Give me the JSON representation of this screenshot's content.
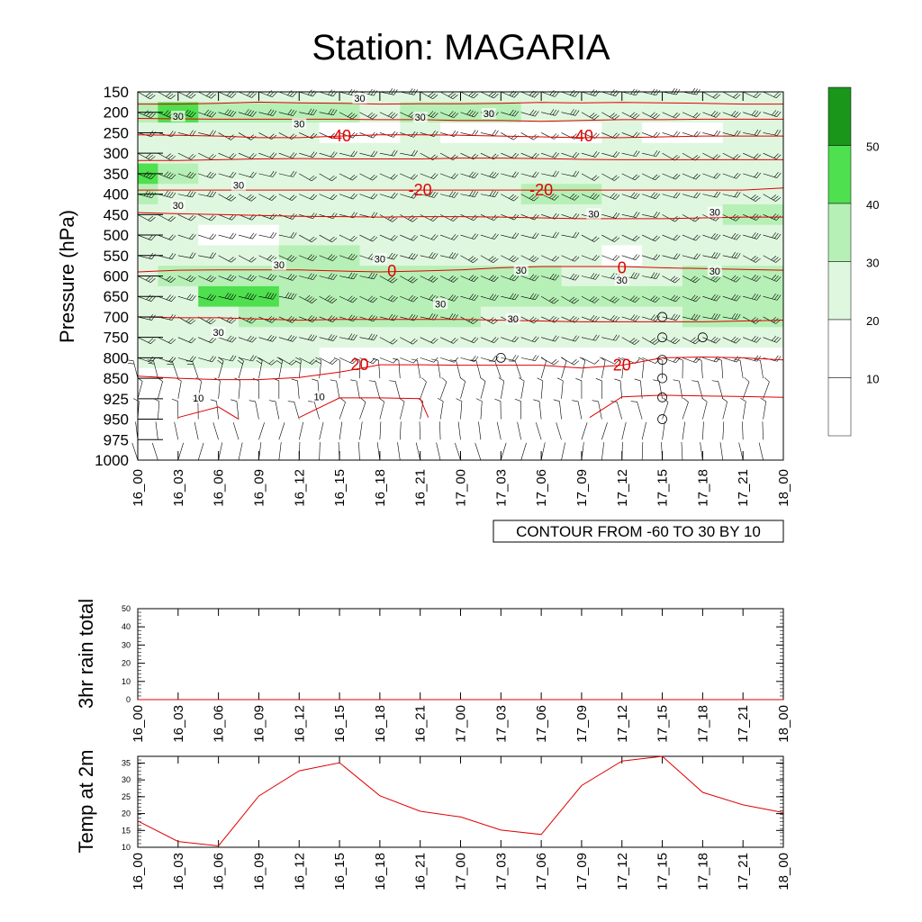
{
  "title": "Station: MAGARIA",
  "colors": {
    "shade_levels": [
      "#ffffff",
      "#ffffff",
      "#dff7df",
      "#b6f0b6",
      "#4ee04e",
      "#1a961a"
    ],
    "temp_contour": "#e00000",
    "barb": "#000000"
  },
  "chart_data": [
    {
      "type": "heatmap",
      "name": "cross-section",
      "ylabel": "Pressure (hPa)",
      "pressure_levels": [
        150,
        200,
        250,
        300,
        350,
        400,
        450,
        500,
        550,
        600,
        650,
        700,
        750,
        800,
        850,
        925,
        950,
        975,
        1000
      ],
      "time_labels": [
        "16_00",
        "16_03",
        "16_06",
        "16_09",
        "16_12",
        "16_15",
        "16_18",
        "16_21",
        "17_00",
        "17_03",
        "17_06",
        "17_09",
        "17_12",
        "17_15",
        "17_18",
        "17_21",
        "18_00"
      ],
      "info_box": "CONTOUR FROM -60 TO 30 BY 10",
      "wind_speed_grid": [
        [
          25,
          25,
          28,
          28,
          26,
          27,
          27,
          25,
          25,
          26,
          27,
          27,
          27,
          25,
          24,
          24,
          24
        ],
        [
          38,
          40,
          36,
          32,
          30,
          31,
          28,
          34,
          35,
          30,
          28,
          26,
          25,
          24,
          25,
          26,
          25
        ],
        [
          24,
          22,
          22,
          22,
          21,
          18,
          18,
          20,
          18,
          16,
          16,
          18,
          20,
          18,
          18,
          22,
          24
        ],
        [
          26,
          24,
          22,
          21,
          22,
          22,
          21,
          22,
          22,
          22,
          21,
          23,
          22,
          21,
          22,
          22,
          22
        ],
        [
          45,
          32,
          24,
          23,
          23,
          23,
          22,
          24,
          25,
          24,
          24,
          23,
          23,
          23,
          23,
          23,
          23
        ],
        [
          38,
          28,
          29,
          24,
          23,
          23,
          24,
          25,
          28,
          29,
          32,
          32,
          28,
          24,
          23,
          28,
          29
        ],
        [
          21,
          22,
          20,
          20,
          21,
          24,
          25,
          24,
          24,
          23,
          23,
          24,
          24,
          24,
          26,
          30,
          32
        ],
        [
          21,
          21,
          18,
          18,
          22,
          22,
          23,
          23,
          24,
          24,
          24,
          24,
          24,
          24,
          25,
          26,
          28
        ],
        [
          22,
          24,
          24,
          28,
          30,
          31,
          29,
          26,
          25,
          25,
          24,
          23,
          18,
          24,
          25,
          26,
          26
        ],
        [
          28,
          30,
          32,
          34,
          34,
          32,
          33,
          34,
          31,
          30,
          30,
          29,
          28,
          29,
          30,
          30,
          31
        ],
        [
          26,
          28,
          40,
          40,
          38,
          34,
          32,
          31,
          31,
          31,
          31,
          30,
          30,
          30,
          31,
          31,
          32
        ],
        [
          24,
          26,
          29,
          30,
          30,
          31,
          31,
          31,
          30,
          29,
          29,
          28,
          29,
          29,
          30,
          30,
          31
        ],
        [
          23,
          24,
          25,
          27,
          28,
          26,
          24,
          23,
          23,
          23,
          23,
          24,
          25,
          26,
          27,
          27,
          27
        ],
        [
          20,
          21,
          21,
          21,
          20,
          15,
          14,
          14,
          16,
          16,
          15,
          14,
          13,
          15,
          18,
          19,
          19
        ],
        [
          18,
          17,
          16,
          16,
          16,
          12,
          10,
          9,
          9,
          9,
          8,
          8,
          8,
          8,
          9,
          9,
          9
        ],
        [
          10,
          10,
          10,
          10,
          10,
          10,
          9,
          9,
          7,
          6,
          6,
          6,
          6,
          6,
          6,
          6,
          6
        ],
        [
          8,
          8,
          8,
          7,
          7,
          6,
          6,
          6,
          5,
          5,
          5,
          5,
          5,
          5,
          5,
          5,
          5
        ],
        [
          4,
          4,
          4,
          4,
          4,
          4,
          4,
          4,
          4,
          4,
          4,
          4,
          4,
          4,
          4,
          4,
          4
        ],
        [
          3,
          3,
          3,
          3,
          3,
          3,
          3,
          3,
          3,
          3,
          3,
          3,
          3,
          3,
          3,
          3,
          3
        ]
      ],
      "wind_direction_grid_rows": {
        "upper": "easterly",
        "lower": "southerly"
      },
      "shade_legend": {
        "levels": [
          10,
          20,
          30,
          40,
          50
        ]
      },
      "speed_contour_labels": [
        "30",
        "30",
        "30",
        "30",
        "30",
        "30",
        "30",
        "30",
        "30",
        "30",
        "30",
        "30",
        "30",
        "30",
        "30",
        "30",
        "30",
        "10",
        "10"
      ],
      "temperature_lines": [
        {
          "label": "-40",
          "pressure": [
            255,
            256,
            258,
            262,
            262,
            258,
            255,
            255,
            256,
            258,
            260,
            262,
            262,
            260,
            258,
            258,
            258
          ]
        },
        {
          "label": "-20",
          "pressure": [
            390,
            390,
            390,
            390,
            390,
            390,
            390,
            390,
            390,
            390,
            390,
            390,
            390,
            390,
            390,
            390,
            385
          ]
        },
        {
          "label": "0",
          "pressure": [
            590,
            586,
            585,
            585,
            585,
            588,
            590,
            588,
            585,
            580,
            577,
            577,
            577,
            580,
            582,
            584,
            586
          ]
        },
        {
          "label": "20",
          "pressure": [
            845,
            850,
            855,
            855,
            848,
            835,
            817,
            817,
            818,
            818,
            818,
            825,
            818,
            800,
            798,
            800,
            805
          ]
        }
      ],
      "temperature_labels": [
        "-40",
        "-40",
        "-20",
        "-20",
        "0",
        "0",
        "20",
        "20"
      ],
      "temperature_line_2": {
        "pressure": [
          180,
          180,
          178,
          175,
          177,
          178,
          180,
          179,
          179,
          178,
          176,
          177,
          176,
          177,
          178,
          180,
          180
        ]
      },
      "temperature_line_3": {
        "pressure": [
          215,
          216,
          217,
          217,
          217,
          217,
          218,
          218,
          220,
          220,
          222,
          220,
          218,
          218,
          217,
          217,
          217
        ]
      },
      "temperature_line_4": {
        "pressure": [
          318,
          318,
          316,
          314,
          313,
          314,
          314,
          314,
          312,
          312,
          313,
          315,
          316,
          316,
          316,
          316,
          316
        ]
      },
      "temperature_line_5": {
        "pressure": [
          445,
          448,
          450,
          452,
          454,
          455,
          456,
          455,
          455,
          456,
          458,
          460,
          460,
          460,
          458,
          456,
          456
        ]
      },
      "temperature_line_6": {
        "pressure": [
          700,
          702,
          702,
          705,
          708,
          706,
          706,
          706,
          706,
          708,
          710,
          712,
          712,
          712,
          712,
          710,
          708
        ]
      },
      "temperature_line_7_segments": [
        {
          "times_idx": [
            1,
            2,
            2.5
          ],
          "pressure": [
            948,
            935,
            950
          ]
        },
        {
          "times_idx": [
            4,
            5,
            6,
            7,
            7.2
          ],
          "pressure": [
            948,
            922,
            922,
            925,
            948
          ]
        },
        {
          "times_idx": [
            11.2,
            12,
            13,
            14,
            15,
            16
          ],
          "pressure": [
            948,
            918,
            912,
            915,
            917,
            920
          ]
        }
      ],
      "station_circles": [
        {
          "time": "17_03",
          "pressure": 800
        },
        {
          "time": "17_15",
          "pressure": 700
        },
        {
          "time": "17_15",
          "pressure": 750
        },
        {
          "time": "17_18",
          "pressure": 750
        },
        {
          "time": "17_15",
          "pressure": 805
        },
        {
          "time": "17_15",
          "pressure": 850
        },
        {
          "time": "17_15",
          "pressure": 920
        },
        {
          "time": "17_15",
          "pressure": 950
        }
      ]
    },
    {
      "type": "line",
      "name": "rain",
      "ylabel": "3hr rain total",
      "ylim": [
        0,
        50
      ],
      "yticks": [
        0,
        10,
        20,
        30,
        40,
        50
      ],
      "categories": [
        "16_00",
        "16_03",
        "16_06",
        "16_09",
        "16_12",
        "16_15",
        "16_18",
        "16_21",
        "17_00",
        "17_03",
        "17_06",
        "17_09",
        "17_12",
        "17_15",
        "17_18",
        "17_21",
        "18_00"
      ],
      "values": [
        0,
        0,
        0,
        0,
        0,
        0,
        0,
        0,
        0,
        0,
        0,
        0,
        0,
        0,
        0,
        0,
        0
      ]
    },
    {
      "type": "line",
      "name": "temp2m",
      "ylabel": "Temp at 2m",
      "ylim": [
        10,
        37
      ],
      "yticks": [
        10,
        15,
        20,
        25,
        30,
        35
      ],
      "categories": [
        "16_00",
        "16_03",
        "16_06",
        "16_09",
        "16_12",
        "16_15",
        "16_18",
        "16_21",
        "17_00",
        "17_03",
        "17_06",
        "17_09",
        "17_12",
        "17_15",
        "17_18",
        "17_21",
        "18_00"
      ],
      "values": [
        17.8,
        11.7,
        10.4,
        25.2,
        32.7,
        35.1,
        25.3,
        20.7,
        19.0,
        15.1,
        13.8,
        28.3,
        35.6,
        37.0,
        26.3,
        22.6,
        20.3
      ]
    }
  ]
}
